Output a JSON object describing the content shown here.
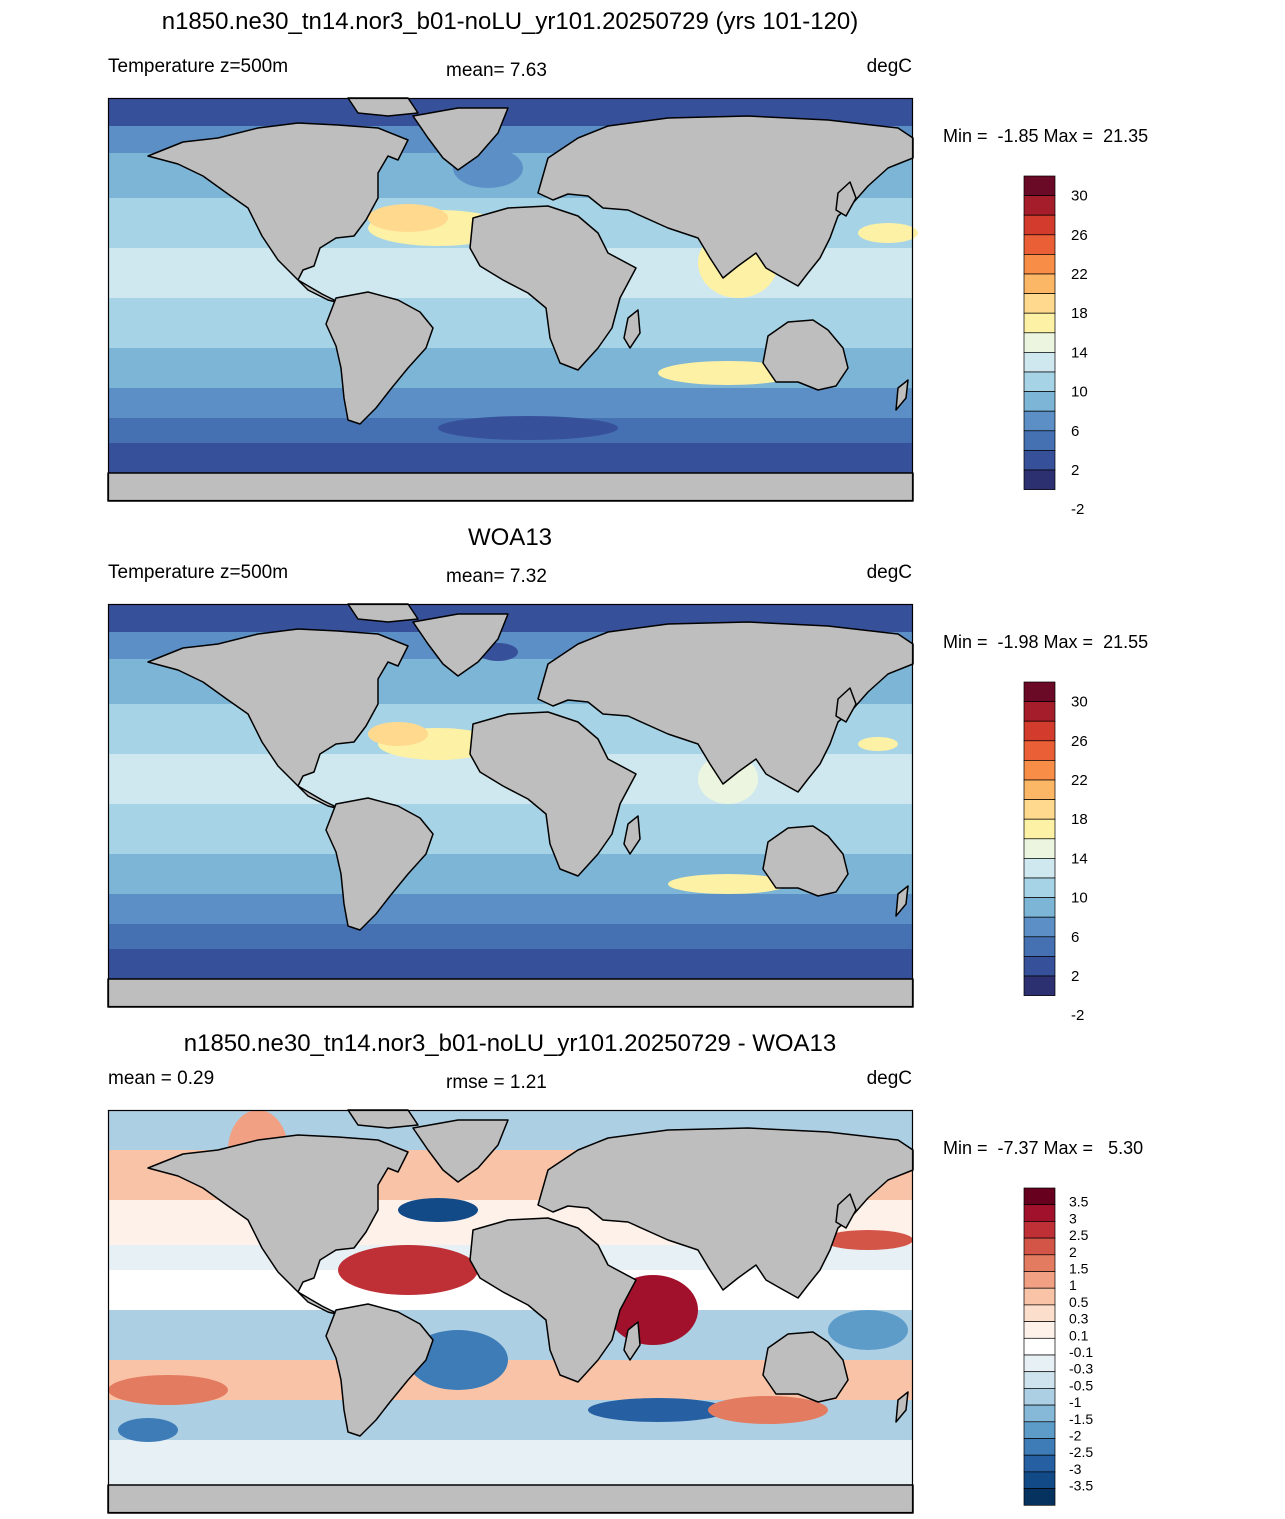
{
  "panels": [
    {
      "title": "n1850.ne30_tn14.nor3_b01-noLU_yr101.20250729 (yrs 101-120)",
      "left_label": "Temperature z=500m",
      "mid_label": "mean=   7.63",
      "right_label": "degC",
      "minmax": "Min =  -1.85 Max =  21.35",
      "colorbar_labels": [
        "30",
        "26",
        "22",
        "18",
        "14",
        "10",
        "6",
        "2",
        "-2"
      ]
    },
    {
      "title": "WOA13",
      "left_label": "Temperature z=500m",
      "mid_label": "mean=   7.32",
      "right_label": "degC",
      "minmax": "Min =  -1.98 Max =  21.55",
      "colorbar_labels": [
        "30",
        "26",
        "22",
        "18",
        "14",
        "10",
        "6",
        "2",
        "-2"
      ]
    },
    {
      "title": "n1850.ne30_tn14.nor3_b01-noLU_yr101.20250729 - WOA13",
      "left_label": "mean =   0.29",
      "mid_label": "rmse =   1.21",
      "right_label": "degC",
      "minmax": "Min =  -7.37 Max =   5.30",
      "colorbar_labels": [
        "3.5",
        "3",
        "2.5",
        "2",
        "1.5",
        "1",
        "0.5",
        "0.3",
        "0.1",
        "-0.1",
        "-0.3",
        "-0.5",
        "-1",
        "-1.5",
        "-2",
        "-2.5",
        "-3",
        "-3.5"
      ]
    }
  ],
  "colors": {
    "land": "#bebebe",
    "temp_palette": [
      "#6b0a26",
      "#a51c2a",
      "#d33b2c",
      "#eb5f36",
      "#f88d47",
      "#fcb766",
      "#fed98e",
      "#fdf1a6",
      "#ecf5df",
      "#cfe8f0",
      "#a6d4e6",
      "#7db5d7",
      "#5b8fc6",
      "#4570b2",
      "#37509a",
      "#2c2f70"
    ],
    "diff_palette": [
      "#67001f",
      "#a1112b",
      "#bf2f36",
      "#d35548",
      "#e37b60",
      "#f1a083",
      "#f8c3a7",
      "#fbdfcc",
      "#fdf1ea",
      "#ffffff",
      "#e6f0f5",
      "#cfe3ee",
      "#adcfe4",
      "#86b9d8",
      "#5d9bc9",
      "#3d7cb7",
      "#2660a3",
      "#124a87",
      "#06325f"
    ]
  }
}
